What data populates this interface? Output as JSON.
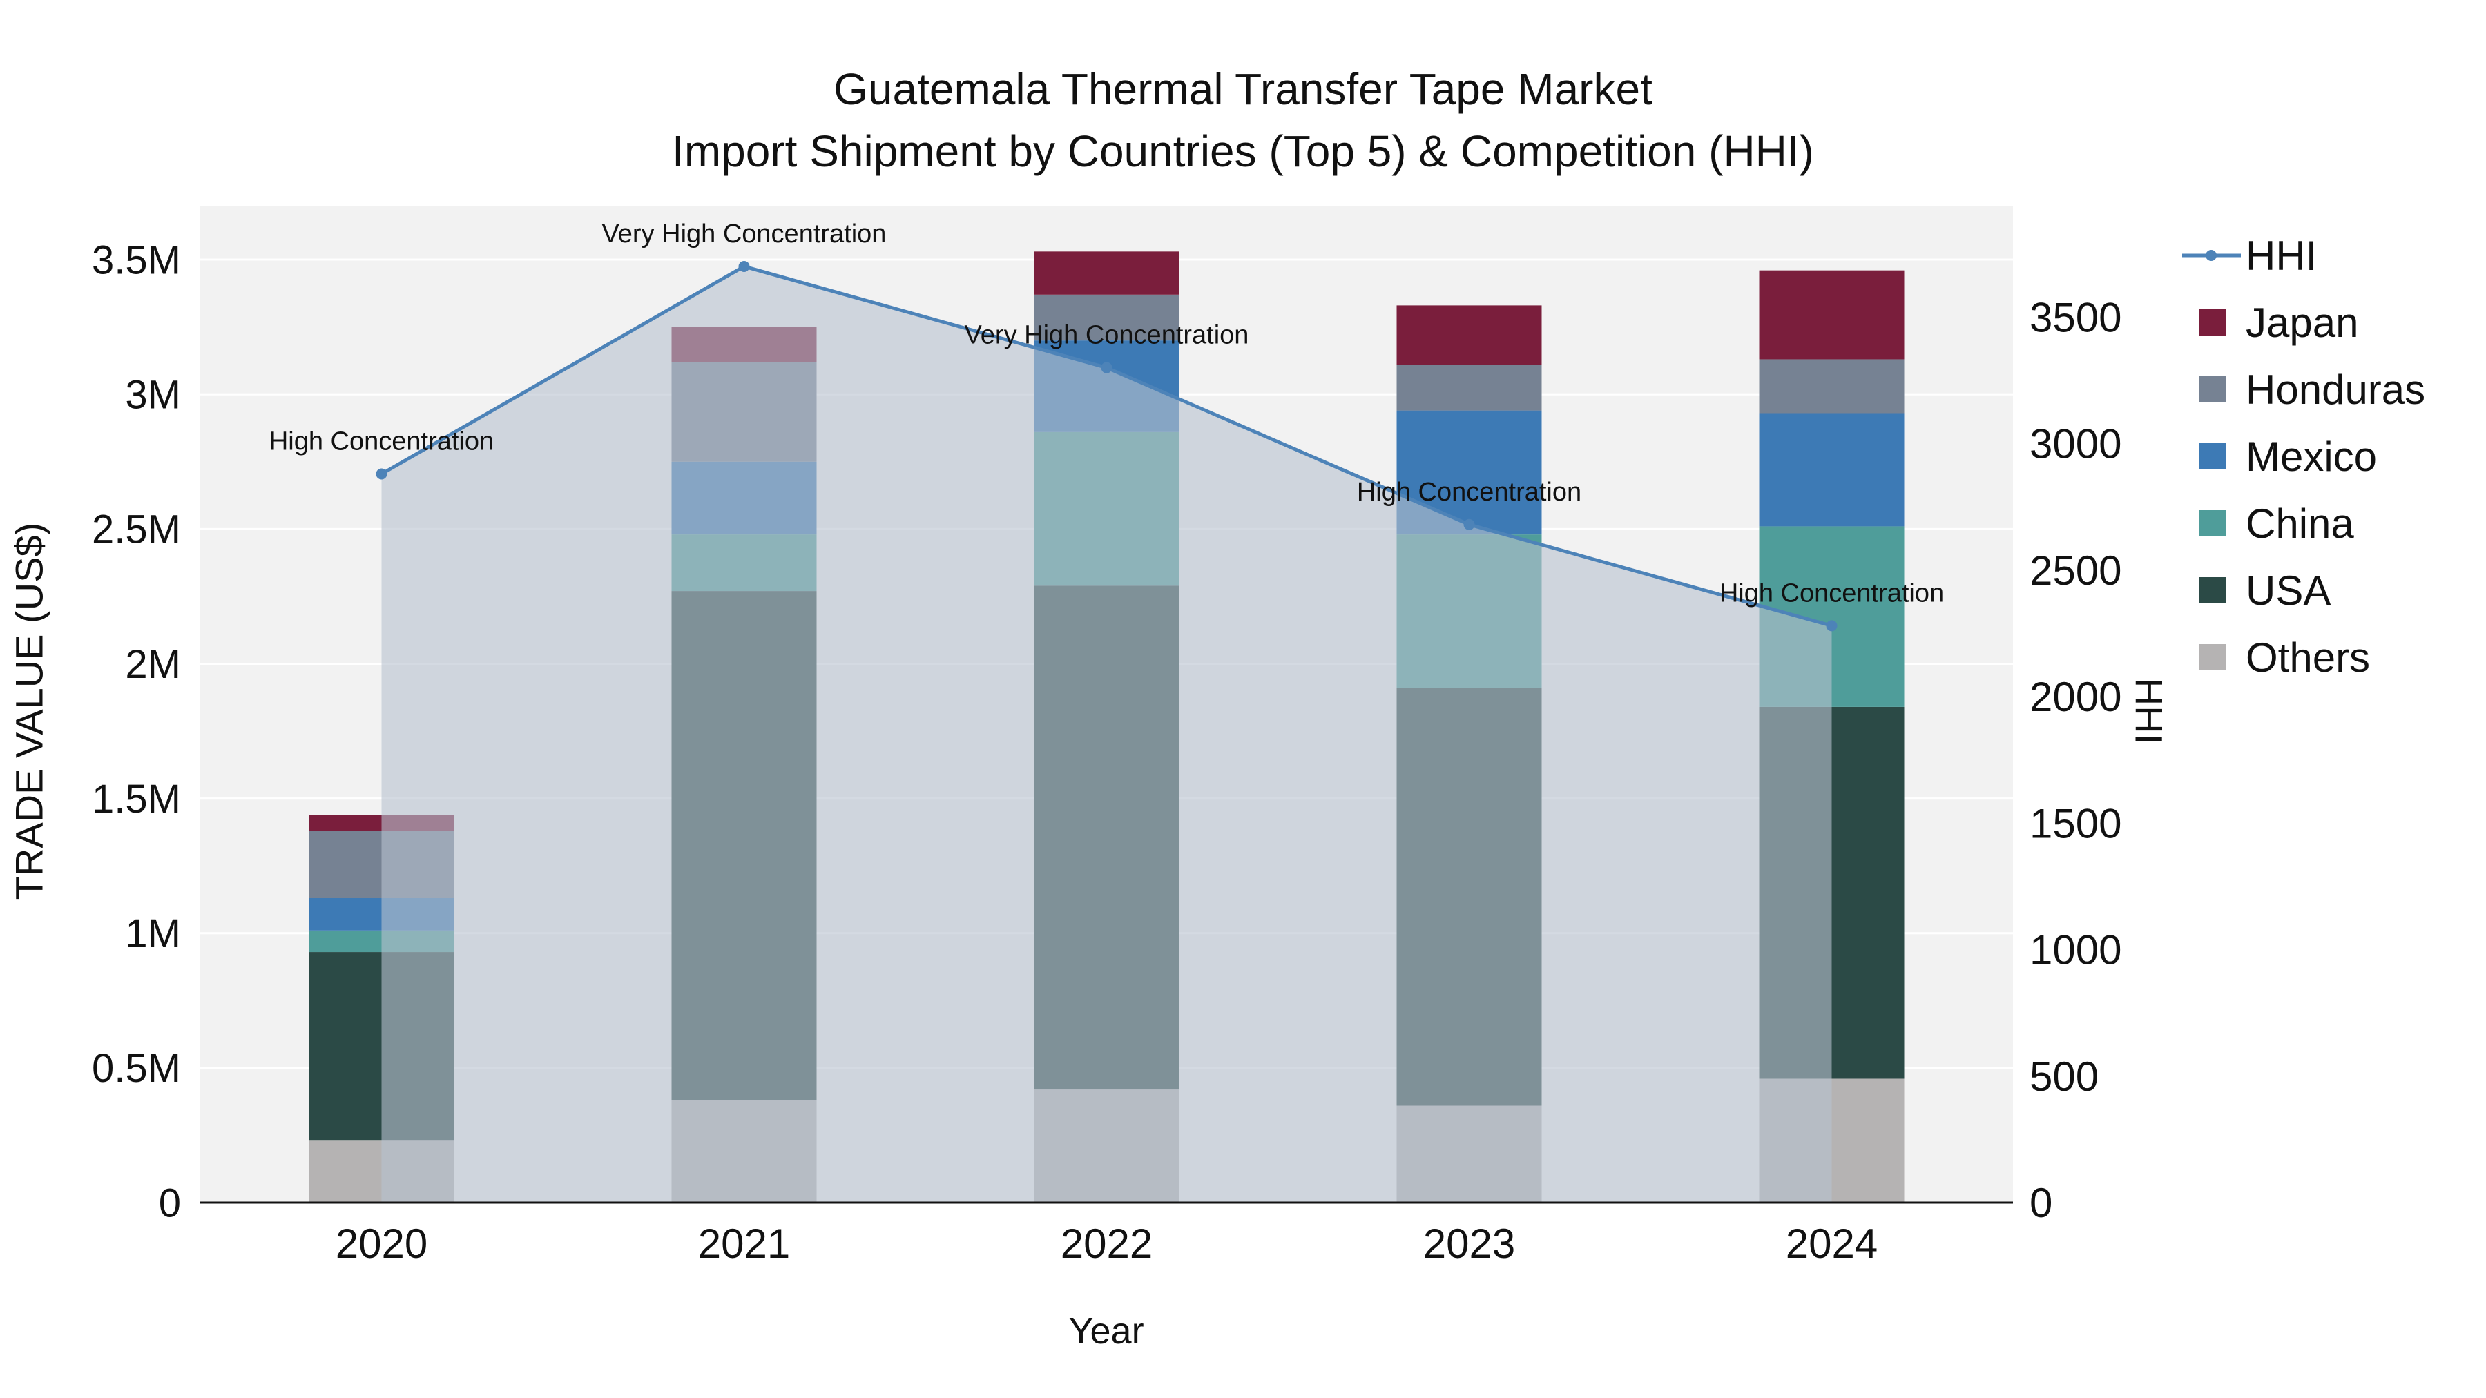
{
  "title": {
    "line1": "Guatemala Thermal Transfer Tape Market",
    "line2": "Import Shipment by Countries (Top 5) & Competition (HHI)"
  },
  "chart_data": {
    "type": "combo-stacked-bar-line",
    "title": "Guatemala Thermal Transfer Tape Market Import Shipment by Countries (Top 5) & Competition (HHI)",
    "xlabel": "Year",
    "ylabel_left": "TRADE VALUE (US$)",
    "ylabel_right": "HHI",
    "categories": [
      "2020",
      "2021",
      "2022",
      "2023",
      "2024"
    ],
    "bar_series": [
      {
        "name": "Others",
        "color": "#b5b3b3",
        "values": [
          230000,
          380000,
          420000,
          360000,
          460000
        ]
      },
      {
        "name": "USA",
        "color": "#2b4a46",
        "values": [
          700000,
          1890000,
          1870000,
          1550000,
          1380000
        ]
      },
      {
        "name": "China",
        "color": "#4f9d9a",
        "values": [
          80000,
          210000,
          570000,
          570000,
          670000
        ]
      },
      {
        "name": "Mexico",
        "color": "#3d7ab5",
        "values": [
          120000,
          270000,
          340000,
          460000,
          420000
        ]
      },
      {
        "name": "Honduras",
        "color": "#768293",
        "values": [
          250000,
          370000,
          170000,
          170000,
          200000
        ]
      },
      {
        "name": "Japan",
        "color": "#7a1e3c",
        "values": [
          60000,
          130000,
          160000,
          220000,
          330000
        ]
      }
    ],
    "bar_totals": [
      1440000,
      3250000,
      3530000,
      3330000,
      3460000
    ],
    "line_series": {
      "name": "HHI",
      "color": "#4d83b8",
      "area_color": "#b7c1cf",
      "values": [
        2880,
        3700,
        3300,
        2680,
        2280
      ],
      "annotations": [
        "High Concentration",
        "Very High Concentration",
        "Very High Concentration",
        "High Concentration",
        "High Concentration"
      ]
    },
    "axes": {
      "left": {
        "max": 3700000,
        "ticks": [
          {
            "v": 0,
            "label": "0"
          },
          {
            "v": 500000,
            "label": "0.5M"
          },
          {
            "v": 1000000,
            "label": "1M"
          },
          {
            "v": 1500000,
            "label": "1.5M"
          },
          {
            "v": 2000000,
            "label": "2M"
          },
          {
            "v": 2500000,
            "label": "2.5M"
          },
          {
            "v": 3000000,
            "label": "3M"
          },
          {
            "v": 3500000,
            "label": "3.5M"
          }
        ]
      },
      "right": {
        "max": 3940,
        "ticks": [
          {
            "v": 0,
            "label": "0"
          },
          {
            "v": 500,
            "label": "500"
          },
          {
            "v": 1000,
            "label": "1000"
          },
          {
            "v": 1500,
            "label": "1500"
          },
          {
            "v": 2000,
            "label": "2000"
          },
          {
            "v": 2500,
            "label": "2500"
          },
          {
            "v": 3000,
            "label": "3000"
          },
          {
            "v": 3500,
            "label": "3500"
          }
        ]
      }
    },
    "legend": [
      "HHI",
      "Japan",
      "Honduras",
      "Mexico",
      "China",
      "USA",
      "Others"
    ],
    "plot_background": "#f2f2f2"
  }
}
